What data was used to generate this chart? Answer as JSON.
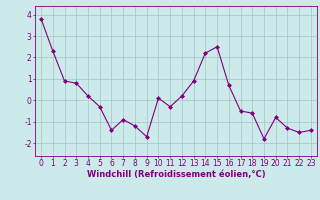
{
  "x": [
    0,
    1,
    2,
    3,
    4,
    5,
    6,
    7,
    8,
    9,
    10,
    11,
    12,
    13,
    14,
    15,
    16,
    17,
    18,
    19,
    20,
    21,
    22,
    23
  ],
  "y": [
    3.8,
    2.3,
    0.9,
    0.8,
    0.2,
    -0.3,
    -1.4,
    -0.9,
    -1.2,
    -1.7,
    0.1,
    -0.3,
    0.2,
    0.9,
    2.2,
    2.5,
    0.7,
    -0.5,
    -0.6,
    -1.8,
    -0.8,
    -1.3,
    -1.5,
    -1.4
  ],
  "line_color": "#800080",
  "marker": "D",
  "marker_size": 2,
  "bg_color": "#cceaea",
  "grid_color": "#aacccc",
  "xlabel": "Windchill (Refroidissement éolien,°C)",
  "xlabel_color": "#800080",
  "tick_color": "#800080",
  "ylim": [
    -2.6,
    4.4
  ],
  "xlim": [
    -0.5,
    23.5
  ],
  "yticks": [
    -2,
    -1,
    0,
    1,
    2,
    3,
    4
  ],
  "xticks": [
    0,
    1,
    2,
    3,
    4,
    5,
    6,
    7,
    8,
    9,
    10,
    11,
    12,
    13,
    14,
    15,
    16,
    17,
    18,
    19,
    20,
    21,
    22,
    23
  ],
  "tick_fontsize": 5.5,
  "xlabel_fontsize": 6.0
}
